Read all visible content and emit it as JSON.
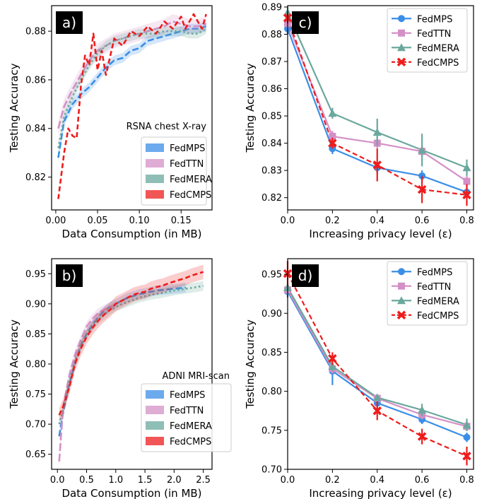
{
  "colors": {
    "FedMPS": "#3a8ee6",
    "FedTTN": "#d490c6",
    "FedMERA": "#6aa89d",
    "FedCMPS": "#ee1c1c"
  },
  "chart_data": [
    {
      "panel": "a)",
      "type": "line",
      "annotation": "RSNA chest X-ray",
      "xlabel": "Data Consumption (in MB)",
      "ylabel": "Testing Accuracy",
      "xlim": [
        -0.005,
        0.187
      ],
      "ylim": [
        0.8065,
        0.8905
      ],
      "xticks": [
        0.0,
        0.05,
        0.1,
        0.15
      ],
      "xtick_labels": [
        "0.00",
        "0.05",
        "0.10",
        "0.15"
      ],
      "yticks": [
        0.82,
        0.84,
        0.86,
        0.88
      ],
      "ytick_labels": [
        "0.82",
        "0.84",
        "0.86",
        "0.88"
      ],
      "legend_style": "patch",
      "legend_loc": "lower-right",
      "series": [
        {
          "name": "FedMPS",
          "x": [
            0.003,
            0.01,
            0.02,
            0.03,
            0.04,
            0.05,
            0.06,
            0.07,
            0.08,
            0.09,
            0.1,
            0.11,
            0.12,
            0.13,
            0.14,
            0.15,
            0.16,
            0.17,
            0.18
          ],
          "y": [
            0.828,
            0.843,
            0.85,
            0.854,
            0.857,
            0.861,
            0.865,
            0.868,
            0.869,
            0.872,
            0.873,
            0.876,
            0.877,
            0.878,
            0.879,
            0.88,
            0.881,
            0.881,
            0.882
          ],
          "band": 0.002
        },
        {
          "name": "FedTTN",
          "x": [
            0.003,
            0.01,
            0.02,
            0.03,
            0.04,
            0.05,
            0.06,
            0.07,
            0.08,
            0.09,
            0.1,
            0.11,
            0.12,
            0.13,
            0.14,
            0.15,
            0.16,
            0.17,
            0.18
          ],
          "y": [
            0.84,
            0.849,
            0.856,
            0.862,
            0.868,
            0.872,
            0.874,
            0.876,
            0.877,
            0.878,
            0.879,
            0.88,
            0.881,
            0.882,
            0.884,
            0.883,
            0.882,
            0.882,
            0.883
          ],
          "band": 0.003
        },
        {
          "name": "FedMERA",
          "x": [
            0.003,
            0.01,
            0.02,
            0.03,
            0.04,
            0.05,
            0.06,
            0.07,
            0.08,
            0.09,
            0.1,
            0.11,
            0.12,
            0.13,
            0.14,
            0.15,
            0.16,
            0.17,
            0.18
          ],
          "y": [
            0.832,
            0.845,
            0.853,
            0.86,
            0.866,
            0.871,
            0.874,
            0.876,
            0.877,
            0.878,
            0.879,
            0.879,
            0.879,
            0.88,
            0.88,
            0.88,
            0.879,
            0.879,
            0.881
          ],
          "band": 0.002
        },
        {
          "name": "FedCMPS",
          "x": [
            0.003,
            0.01,
            0.015,
            0.02,
            0.025,
            0.03,
            0.035,
            0.04,
            0.045,
            0.05,
            0.055,
            0.06,
            0.07,
            0.08,
            0.09,
            0.1,
            0.11,
            0.12,
            0.13,
            0.14,
            0.15,
            0.155,
            0.16,
            0.165,
            0.17,
            0.175,
            0.18
          ],
          "y": [
            0.811,
            0.83,
            0.84,
            0.837,
            0.836,
            0.857,
            0.87,
            0.866,
            0.879,
            0.864,
            0.872,
            0.862,
            0.877,
            0.874,
            0.88,
            0.878,
            0.882,
            0.879,
            0.884,
            0.881,
            0.886,
            0.881,
            0.884,
            0.887,
            0.884,
            0.881,
            0.887
          ],
          "band": 0.0
        }
      ]
    },
    {
      "panel": "b)",
      "type": "line",
      "annotation": "ADNI MRI-scan",
      "xlabel": "Data Consumption (in MB)",
      "ylabel": "Testing Accuracy",
      "xlim": [
        -0.1,
        2.65
      ],
      "ylim": [
        0.625,
        0.975
      ],
      "xticks": [
        0.0,
        0.5,
        1.0,
        1.5,
        2.0,
        2.5
      ],
      "xtick_labels": [
        "0.0",
        "0.5",
        "1.0",
        "1.5",
        "2.0",
        "2.5"
      ],
      "yticks": [
        0.65,
        0.7,
        0.75,
        0.8,
        0.85,
        0.9,
        0.95
      ],
      "ytick_labels": [
        "0.65",
        "0.70",
        "0.75",
        "0.80",
        "0.85",
        "0.90",
        "0.95"
      ],
      "legend_style": "patch",
      "legend_loc": "lower-right",
      "series": [
        {
          "name": "FedMPS",
          "x": [
            0.03,
            0.1,
            0.2,
            0.3,
            0.4,
            0.5,
            0.6,
            0.7,
            0.8,
            0.9,
            1.0,
            1.1,
            1.2,
            1.3,
            1.4,
            1.5,
            1.6,
            1.7,
            1.8,
            1.9,
            2.0,
            2.1,
            2.2
          ],
          "y": [
            0.68,
            0.72,
            0.765,
            0.8,
            0.83,
            0.85,
            0.865,
            0.878,
            0.888,
            0.895,
            0.9,
            0.905,
            0.91,
            0.913,
            0.916,
            0.918,
            0.92,
            0.922,
            0.923,
            0.924,
            0.925,
            0.926,
            0.927
          ],
          "band": 0.008
        },
        {
          "name": "FedTTN",
          "x": [
            0.03,
            0.1,
            0.2,
            0.3,
            0.4,
            0.5,
            0.6,
            0.7,
            0.8,
            0.9,
            1.0
          ],
          "y": [
            0.638,
            0.73,
            0.78,
            0.815,
            0.84,
            0.862,
            0.875,
            0.885,
            0.89,
            0.895,
            0.898
          ],
          "band": 0.008
        },
        {
          "name": "FedMERA",
          "x": [
            0.03,
            0.1,
            0.2,
            0.3,
            0.4,
            0.5,
            0.6,
            0.7,
            0.8,
            0.9,
            1.0,
            1.2,
            1.4,
            1.6,
            1.8,
            2.0,
            2.2,
            2.4,
            2.5
          ],
          "y": [
            0.7,
            0.725,
            0.77,
            0.805,
            0.832,
            0.85,
            0.863,
            0.874,
            0.882,
            0.89,
            0.895,
            0.903,
            0.91,
            0.915,
            0.918,
            0.922,
            0.925,
            0.928,
            0.93
          ],
          "band": 0.008
        },
        {
          "name": "FedCMPS",
          "x": [
            0.03,
            0.1,
            0.2,
            0.3,
            0.4,
            0.5,
            0.6,
            0.7,
            0.8,
            0.9,
            1.0,
            1.1,
            1.2,
            1.3,
            1.4,
            1.5,
            1.6,
            1.7,
            1.8,
            1.9,
            2.0,
            2.1,
            2.2,
            2.3,
            2.4,
            2.5
          ],
          "y": [
            0.715,
            0.73,
            0.76,
            0.8,
            0.825,
            0.845,
            0.86,
            0.872,
            0.882,
            0.89,
            0.9,
            0.905,
            0.91,
            0.915,
            0.918,
            0.92,
            0.925,
            0.928,
            0.93,
            0.934,
            0.937,
            0.94,
            0.943,
            0.947,
            0.95,
            0.953
          ],
          "band": 0.012
        }
      ]
    },
    {
      "panel": "c)",
      "type": "line",
      "xlabel": "Increasing privacy level (ε)",
      "ylabel": "Testing Accuracy",
      "xlim": [
        0.0,
        0.83
      ],
      "ylim": [
        0.8155,
        0.8905
      ],
      "xticks": [
        0.0,
        0.2,
        0.4,
        0.6,
        0.8
      ],
      "xtick_labels": [
        "0.0",
        "0.2",
        "0.4",
        "0.6",
        "0.8"
      ],
      "yticks": [
        0.82,
        0.83,
        0.84,
        0.85,
        0.86,
        0.87,
        0.88,
        0.89
      ],
      "ytick_labels": [
        "0.82",
        "0.83",
        "0.84",
        "0.85",
        "0.86",
        "0.87",
        "0.88",
        "0.89"
      ],
      "legend_style": "marker",
      "legend_loc": "top-right",
      "series": [
        {
          "name": "FedMPS",
          "x": [
            0.0,
            0.2,
            0.4,
            0.6,
            0.8
          ],
          "y": [
            0.882,
            0.838,
            0.831,
            0.828,
            0.822
          ],
          "err": [
            0.002,
            0.002,
            0.002,
            0.002,
            0.002
          ],
          "marker": "circle",
          "dash": false
        },
        {
          "name": "FedTTN",
          "x": [
            0.0,
            0.2,
            0.4,
            0.6,
            0.8
          ],
          "y": [
            0.884,
            0.8425,
            0.84,
            0.837,
            0.826
          ],
          "err": [
            0.002,
            0.002,
            0.002,
            0.002,
            0.002
          ],
          "marker": "square",
          "dash": false
        },
        {
          "name": "FedMERA",
          "x": [
            0.0,
            0.2,
            0.4,
            0.6,
            0.8
          ],
          "y": [
            0.888,
            0.851,
            0.844,
            0.8375,
            0.831
          ],
          "err": [
            0.002,
            0.002,
            0.005,
            0.006,
            0.003
          ],
          "marker": "triangle",
          "dash": false
        },
        {
          "name": "FedCMPS",
          "x": [
            0.0,
            0.2,
            0.4,
            0.6,
            0.8
          ],
          "y": [
            0.886,
            0.84,
            0.832,
            0.823,
            0.821
          ],
          "err": [
            0.002,
            0.002,
            0.006,
            0.005,
            0.004
          ],
          "marker": "x",
          "dash": true
        }
      ]
    },
    {
      "panel": "d)",
      "type": "line",
      "xlabel": "Increasing privacy level (ε)",
      "ylabel": "Testing Accuracy",
      "xlim": [
        0.0,
        0.83
      ],
      "ylim": [
        0.7,
        0.97
      ],
      "xticks": [
        0.0,
        0.2,
        0.4,
        0.6,
        0.8
      ],
      "xtick_labels": [
        "0.0",
        "0.2",
        "0.4",
        "0.6",
        "0.8"
      ],
      "yticks": [
        0.7,
        0.75,
        0.8,
        0.85,
        0.9,
        0.95
      ],
      "ytick_labels": [
        "0.70",
        "0.75",
        "0.80",
        "0.85",
        "0.90",
        "0.95"
      ],
      "legend_style": "marker",
      "legend_loc": "top-right",
      "series": [
        {
          "name": "FedMPS",
          "x": [
            0.0,
            0.2,
            0.4,
            0.6,
            0.8
          ],
          "y": [
            0.928,
            0.826,
            0.785,
            0.764,
            0.741
          ],
          "err": [
            0.008,
            0.018,
            0.006,
            0.006,
            0.006
          ],
          "marker": "circle",
          "dash": false
        },
        {
          "name": "FedTTN",
          "x": [
            0.0,
            0.2,
            0.4,
            0.6,
            0.8
          ],
          "y": [
            0.93,
            0.829,
            0.791,
            0.77,
            0.755
          ],
          "err": [
            0.006,
            0.006,
            0.004,
            0.006,
            0.006
          ],
          "marker": "square",
          "dash": false
        },
        {
          "name": "FedMERA",
          "x": [
            0.0,
            0.2,
            0.4,
            0.6,
            0.8
          ],
          "y": [
            0.933,
            0.832,
            0.792,
            0.776,
            0.757
          ],
          "err": [
            0.006,
            0.006,
            0.004,
            0.008,
            0.008
          ],
          "marker": "triangle",
          "dash": false
        },
        {
          "name": "FedCMPS",
          "x": [
            0.0,
            0.2,
            0.4,
            0.6,
            0.8
          ],
          "y": [
            0.951,
            0.842,
            0.775,
            0.742,
            0.717
          ],
          "err": [
            0.016,
            0.008,
            0.012,
            0.01,
            0.012
          ],
          "marker": "x",
          "dash": true
        }
      ]
    }
  ]
}
